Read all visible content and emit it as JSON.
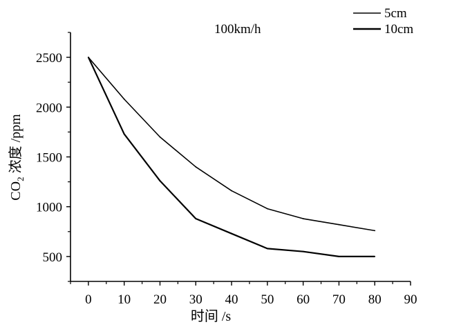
{
  "chart_data": {
    "type": "line",
    "annotation": "100km/h",
    "xlabel": "时间 /s",
    "ylabel": {
      "prefix": "CO",
      "subscript": "2",
      "suffix": " 浓度 /ppm"
    },
    "xlim": [
      -5,
      90
    ],
    "ylim": [
      250,
      2750
    ],
    "xticks": [
      "0",
      "10",
      "20",
      "30",
      "40",
      "50",
      "60",
      "70",
      "80",
      "90"
    ],
    "yticks": [
      "500",
      "1000",
      "1500",
      "2000",
      "2500"
    ],
    "legend_position": "top-right",
    "series": [
      {
        "name": "5cm",
        "color": "#000000",
        "x": [
          0,
          10,
          20,
          30,
          40,
          50,
          60,
          70,
          80
        ],
        "y": [
          2500,
          2080,
          1700,
          1400,
          1160,
          980,
          880,
          820,
          760
        ]
      },
      {
        "name": "10cm",
        "color": "#000000",
        "x": [
          0,
          10,
          20,
          30,
          40,
          50,
          60,
          70,
          80
        ],
        "y": [
          2500,
          1730,
          1260,
          880,
          730,
          580,
          550,
          500,
          500
        ]
      }
    ]
  }
}
